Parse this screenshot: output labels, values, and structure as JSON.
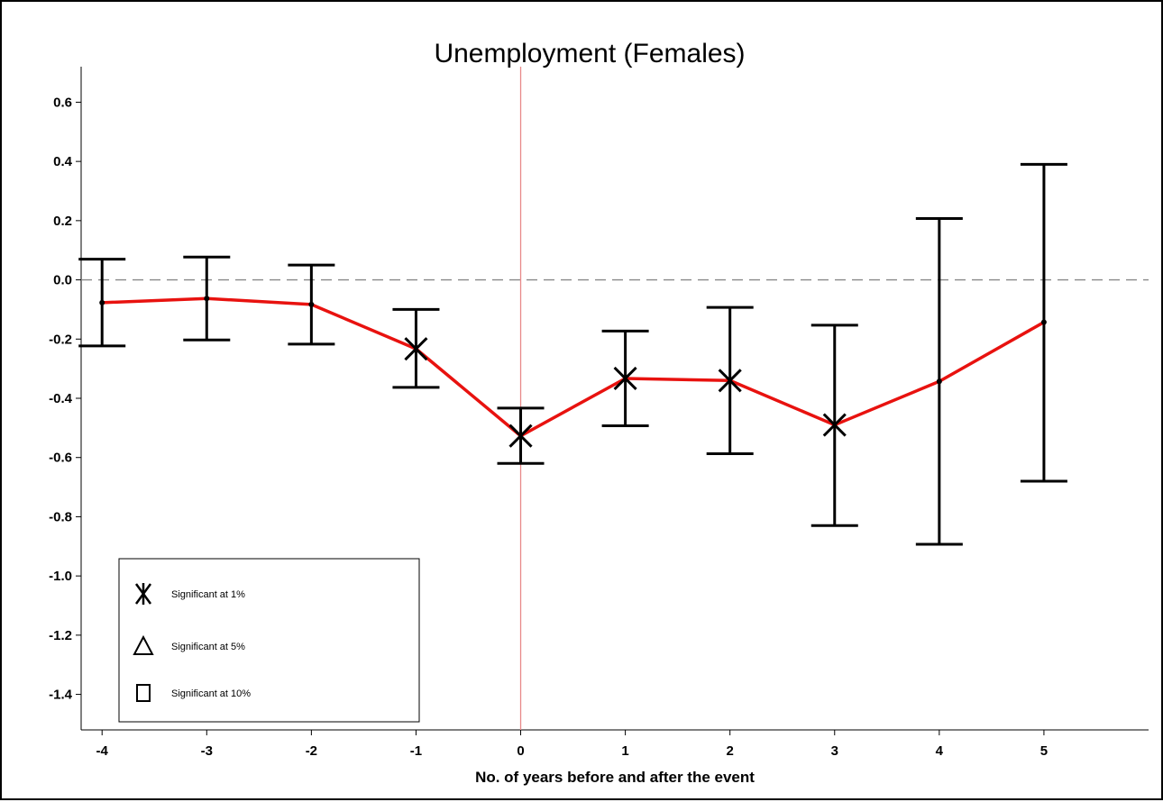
{
  "chart_data": {
    "type": "line",
    "title": "Unemployment (Females)",
    "xlabel": "No. of years before and after the event",
    "ylabel": "",
    "x": [
      -4,
      -3,
      -2,
      -1,
      0,
      1,
      2,
      3,
      4,
      5
    ],
    "xticks": [
      "-4",
      "-3",
      "-2",
      "-1",
      "0",
      "1",
      "2",
      "3",
      "4",
      "5"
    ],
    "yticks": [
      "0.6",
      "0.4",
      "0.2",
      "0.0",
      "-0.2",
      "-0.4",
      "-0.6",
      "-0.8",
      "-1.0",
      "-1.2",
      "-1.4"
    ],
    "xlim": [
      -4.2,
      6.0
    ],
    "ylim": [
      -1.52,
      0.72
    ],
    "series": [
      {
        "values": [
          -0.077,
          -0.063,
          -0.083,
          -0.233,
          -0.527,
          -0.333,
          -0.34,
          -0.49,
          -0.343,
          -0.143
        ],
        "ci_low": [
          -0.223,
          -0.203,
          -0.217,
          -0.363,
          -0.62,
          -0.493,
          -0.587,
          -0.83,
          -0.893,
          -0.68
        ],
        "ci_high": [
          0.07,
          0.077,
          0.05,
          -0.1,
          -0.433,
          -0.173,
          -0.093,
          -0.153,
          0.207,
          0.39
        ],
        "markers": [
          "none",
          "none",
          "none",
          "x",
          "x",
          "x",
          "x",
          "x",
          "none",
          "none"
        ],
        "color": "#e8120f"
      }
    ],
    "reference_lines": [
      {
        "axis": "y",
        "value": 0.0,
        "style": "dashed",
        "color": "#888888"
      },
      {
        "axis": "x",
        "value": 0,
        "style": "solid",
        "color": "#e88a8a"
      }
    ],
    "legend": {
      "position": "bottom-left",
      "items": [
        {
          "marker": "asterisk",
          "label": "Significant at 1%"
        },
        {
          "marker": "triangle",
          "label": "Significant at 5%"
        },
        {
          "marker": "square",
          "label": "Significant at 10%"
        }
      ]
    },
    "grid": false
  }
}
